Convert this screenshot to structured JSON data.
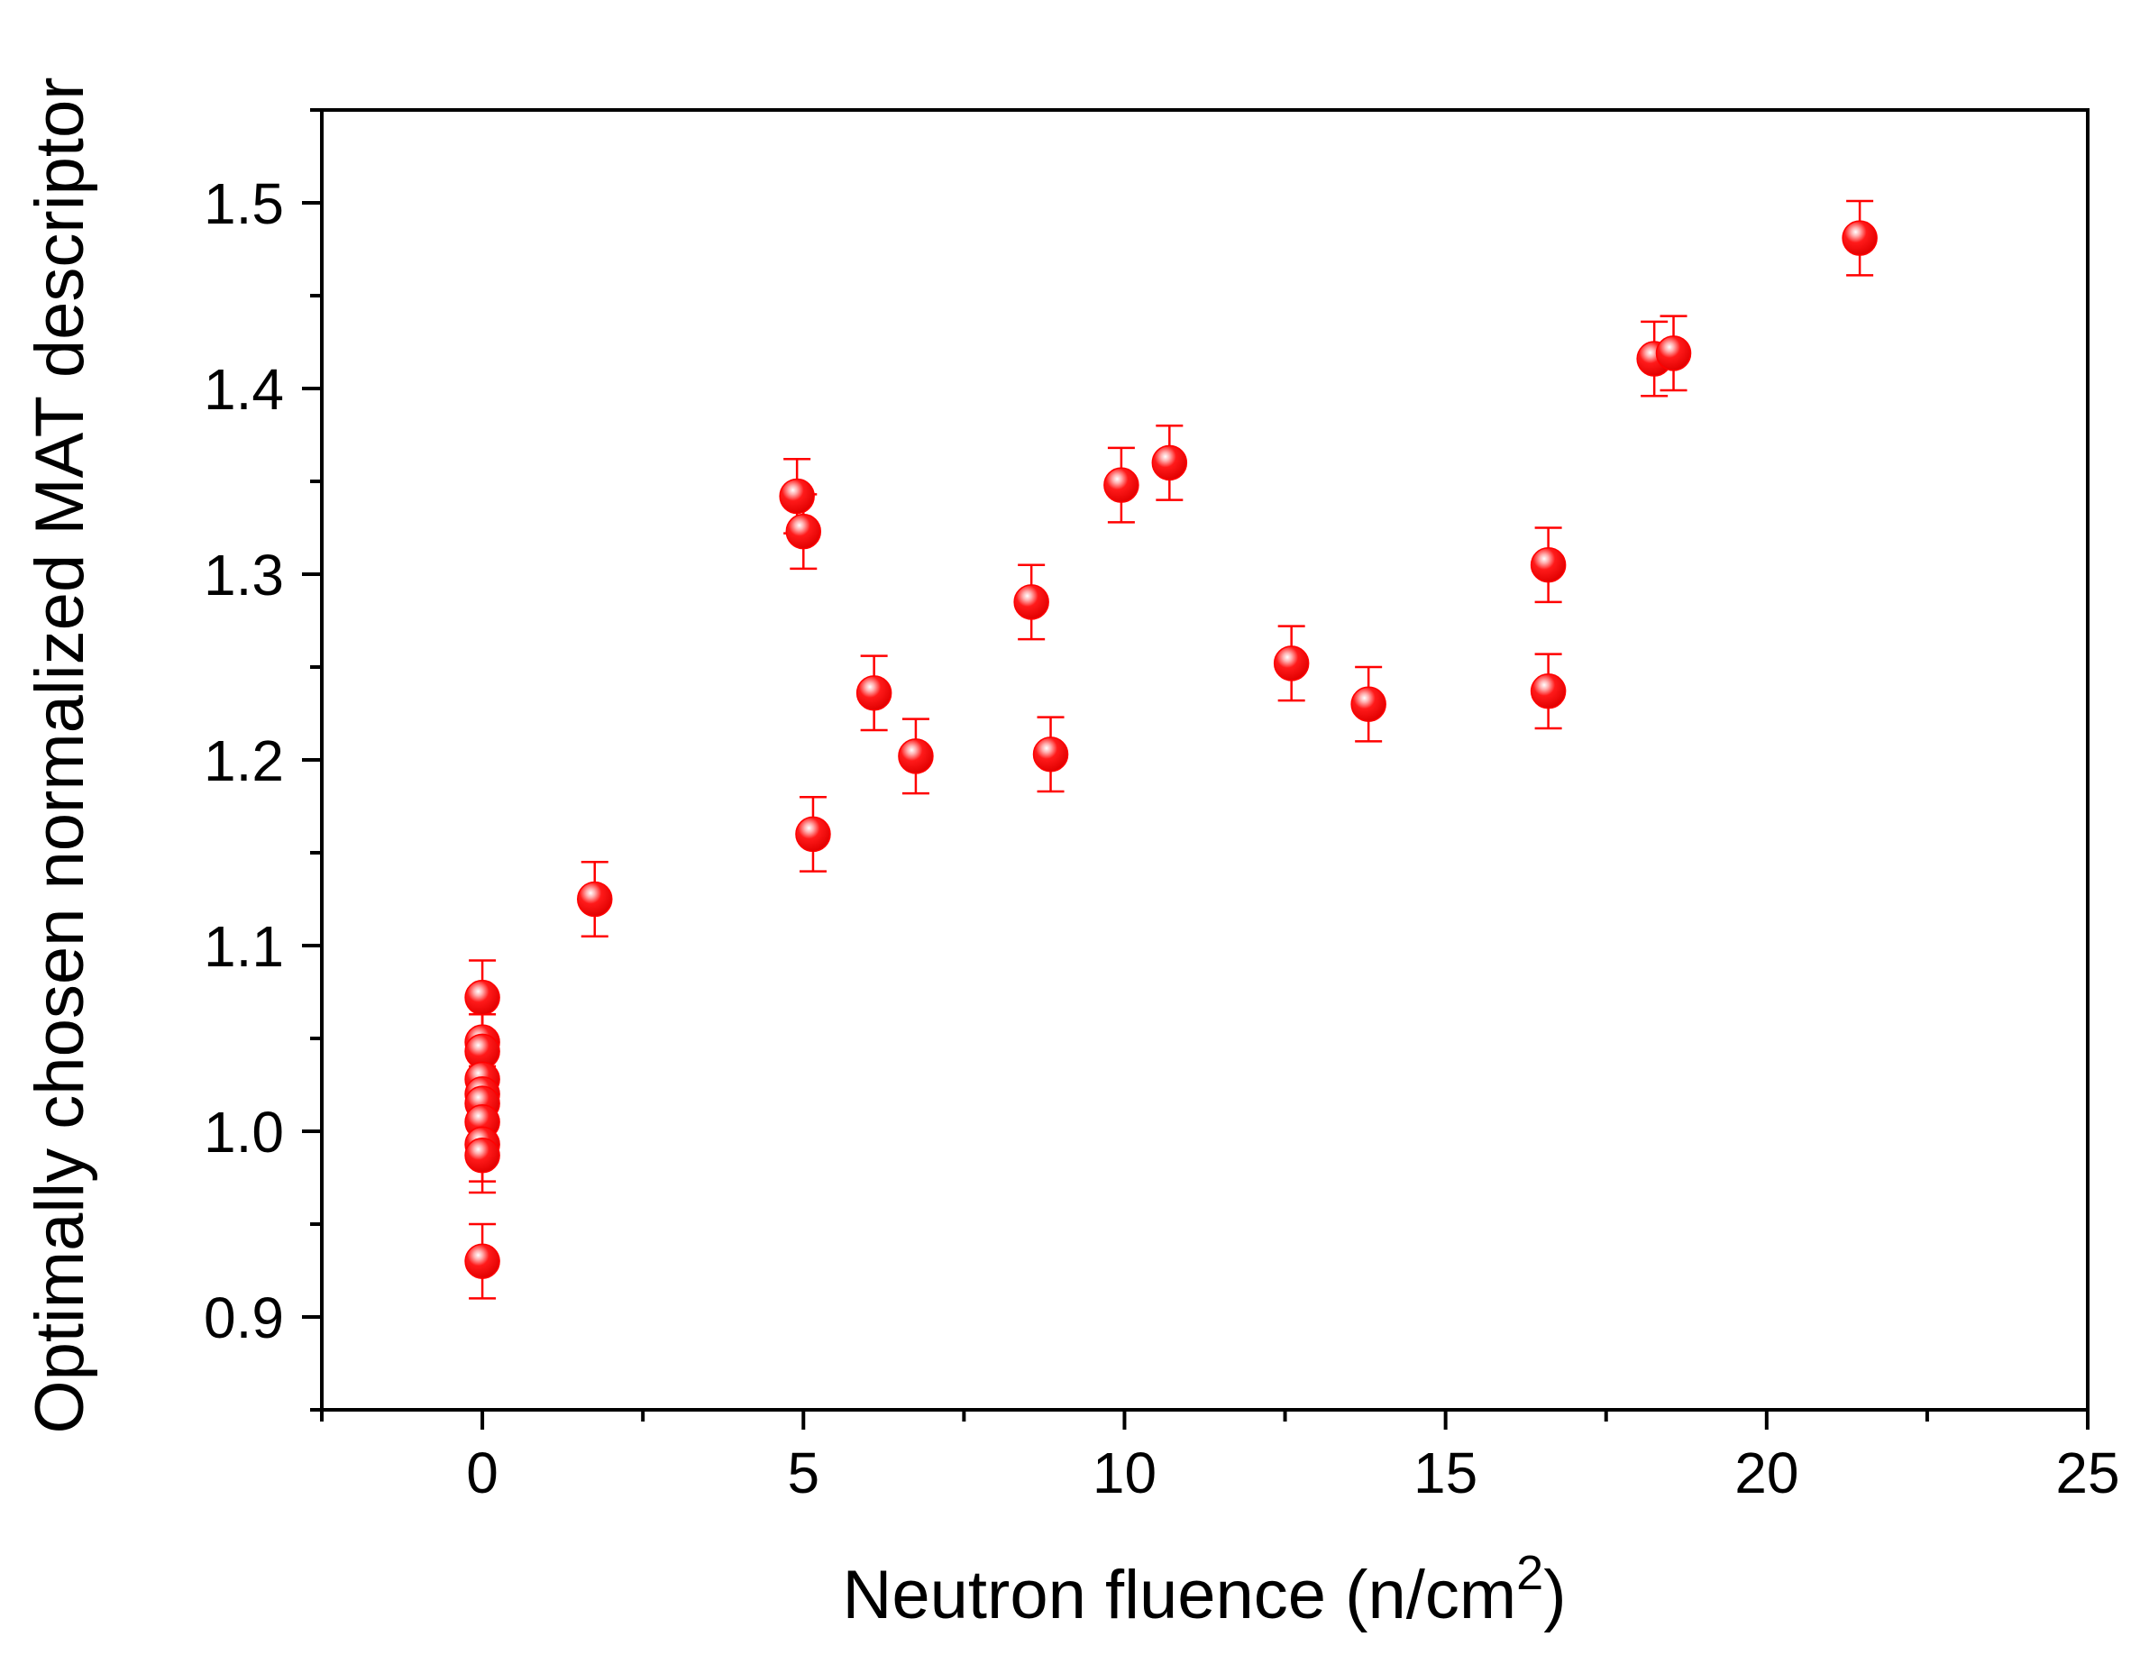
{
  "chart_data": {
    "type": "scatter",
    "title": "",
    "xlabel_text": "Neutron fluence  (n/cm",
    "xlabel_sup": "2",
    "xlabel_close": ")",
    "ylabel": "Optimally chosen normalized MAT descriptor",
    "xlim": [
      -2.5,
      25
    ],
    "ylim": [
      0.85,
      1.55
    ],
    "x_ticks": [
      0,
      5,
      10,
      15,
      20,
      25
    ],
    "x_tick_labels": [
      "0",
      "5",
      "10",
      "15",
      "20",
      "25"
    ],
    "x_minor_ticks": [
      -2.5,
      2.5,
      7.5,
      12.5,
      17.5,
      22.5
    ],
    "y_ticks": [
      0.9,
      1.0,
      1.1,
      1.2,
      1.3,
      1.4,
      1.5
    ],
    "y_tick_labels": [
      "0.9",
      "1.0",
      "1.1",
      "1.2",
      "1.3",
      "1.4",
      "1.5"
    ],
    "y_minor_ticks": [
      0.85,
      0.95,
      1.05,
      1.15,
      1.25,
      1.35,
      1.45,
      1.55
    ],
    "grid": false,
    "legend": "none",
    "marker_color": "#ff0000",
    "errorbar_color": "#ff0000",
    "series": [
      {
        "points": [
          {
            "x": 0,
            "y": 1.072,
            "err": 0.02
          },
          {
            "x": 0,
            "y": 1.048,
            "err": 0.02
          },
          {
            "x": 0,
            "y": 1.043,
            "err": 0.02
          },
          {
            "x": 0,
            "y": 1.028,
            "err": 0.02
          },
          {
            "x": 0,
            "y": 1.02,
            "err": 0.02
          },
          {
            "x": 0,
            "y": 1.015,
            "err": 0.02
          },
          {
            "x": 0,
            "y": 1.005,
            "err": 0.02
          },
          {
            "x": 0,
            "y": 0.993,
            "err": 0.02
          },
          {
            "x": 0,
            "y": 0.987,
            "err": 0.02
          },
          {
            "x": 0,
            "y": 0.93,
            "err": 0.02
          },
          {
            "x": 1.75,
            "y": 1.125,
            "err": 0.02
          },
          {
            "x": 4.9,
            "y": 1.342,
            "err": 0.02
          },
          {
            "x": 5.0,
            "y": 1.323,
            "err": 0.02
          },
          {
            "x": 5.15,
            "y": 1.16,
            "err": 0.02
          },
          {
            "x": 6.1,
            "y": 1.236,
            "err": 0.02
          },
          {
            "x": 6.75,
            "y": 1.202,
            "err": 0.02
          },
          {
            "x": 8.55,
            "y": 1.285,
            "err": 0.02
          },
          {
            "x": 8.85,
            "y": 1.203,
            "err": 0.02
          },
          {
            "x": 9.95,
            "y": 1.348,
            "err": 0.02
          },
          {
            "x": 10.7,
            "y": 1.36,
            "err": 0.02
          },
          {
            "x": 12.6,
            "y": 1.252,
            "err": 0.02
          },
          {
            "x": 13.8,
            "y": 1.23,
            "err": 0.02
          },
          {
            "x": 16.6,
            "y": 1.305,
            "err": 0.02
          },
          {
            "x": 16.6,
            "y": 1.237,
            "err": 0.02
          },
          {
            "x": 18.25,
            "y": 1.416,
            "err": 0.02
          },
          {
            "x": 18.55,
            "y": 1.419,
            "err": 0.02
          },
          {
            "x": 21.45,
            "y": 1.481,
            "err": 0.02
          }
        ]
      }
    ]
  }
}
